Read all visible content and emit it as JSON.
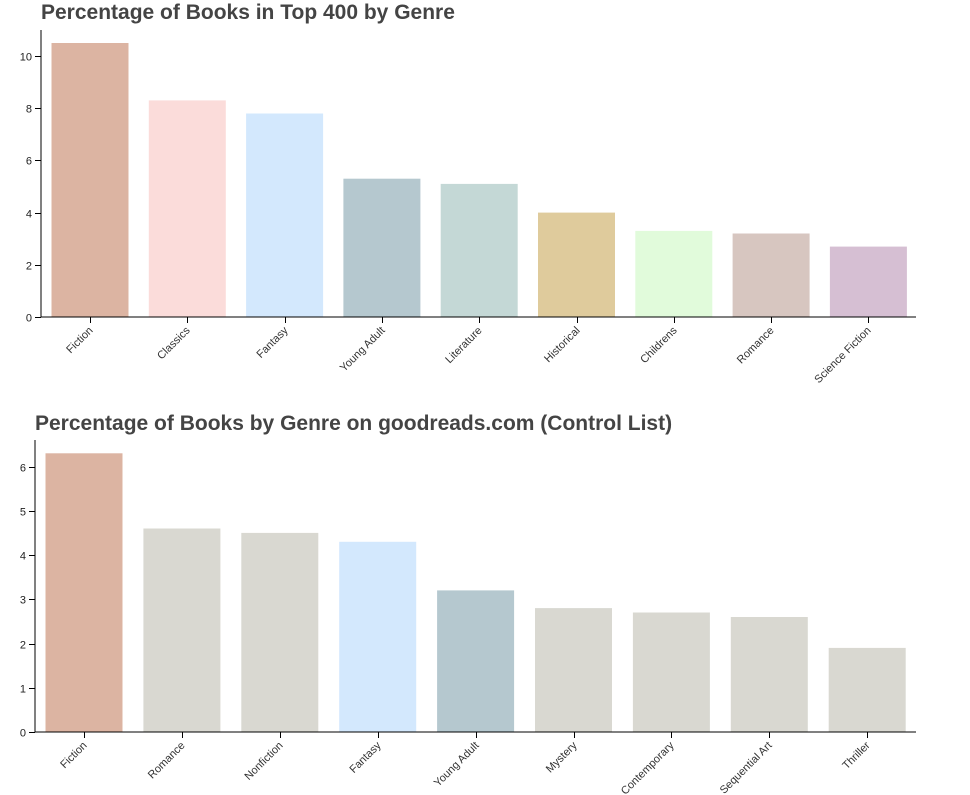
{
  "chart_data": [
    {
      "type": "bar",
      "title": "Percentage of Books in Top 400 by Genre",
      "xlabel": "",
      "ylabel": "",
      "ylim": [
        0,
        11
      ],
      "yticks": [
        0,
        2,
        4,
        6,
        8,
        10
      ],
      "categories": [
        "Fiction",
        "Classics",
        "Fantasy",
        "Young Adult",
        "Literature",
        "Historical",
        "Childrens",
        "Romance",
        "Science Fiction"
      ],
      "values": [
        10.5,
        8.3,
        7.8,
        5.3,
        5.1,
        4.0,
        3.3,
        3.2,
        2.7
      ],
      "colors": [
        "#dcb4a2",
        "#fbdcda",
        "#d3e8fd",
        "#b5c8cf",
        "#c4d8d6",
        "#dfcb9c",
        "#e1fbdb",
        "#d7c6c0",
        "#d6bfd3"
      ]
    },
    {
      "type": "bar",
      "title": "Percentage of Books by Genre on goodreads.com (Control List)",
      "xlabel": "",
      "ylabel": "",
      "ylim": [
        0,
        6.6
      ],
      "yticks": [
        0,
        1,
        2,
        3,
        4,
        5,
        6
      ],
      "categories": [
        "Fiction",
        "Romance",
        "Nonfiction",
        "Fantasy",
        "Young Adult",
        "Mystery",
        "Contemporary",
        "Sequential Art",
        "Thriller"
      ],
      "values": [
        6.3,
        4.6,
        4.5,
        4.3,
        3.2,
        2.8,
        2.7,
        2.6,
        1.9
      ],
      "colors": [
        "#dcb4a2",
        "#d9d8d1",
        "#d9d8d1",
        "#d3e8fd",
        "#b5c8cf",
        "#d9d8d1",
        "#d9d8d1",
        "#d9d8d1",
        "#d9d8d1"
      ]
    }
  ]
}
